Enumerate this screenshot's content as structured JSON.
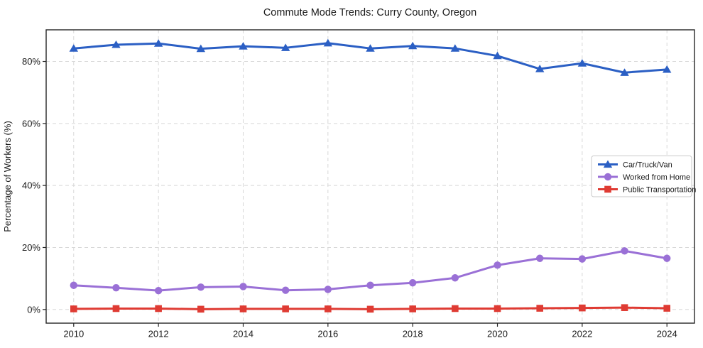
{
  "chart_data": {
    "type": "line",
    "title": "Commute Mode Trends: Curry County, Oregon",
    "xlabel": "",
    "ylabel": "Percentage of Workers (%)",
    "x": [
      2010,
      2011,
      2012,
      2013,
      2014,
      2015,
      2016,
      2017,
      2018,
      2019,
      2020,
      2021,
      2022,
      2023,
      2024
    ],
    "series": [
      {
        "name": "Car/Truck/Van",
        "marker": "triangle",
        "color": "#2b5fc4",
        "values": [
          84.2,
          85.4,
          85.8,
          84.1,
          84.9,
          84.4,
          85.9,
          84.2,
          85.0,
          84.2,
          81.8,
          77.6,
          79.4,
          76.4,
          77.4
        ]
      },
      {
        "name": "Worked from Home",
        "marker": "circle",
        "color": "#9a70d6",
        "values": [
          7.8,
          7.0,
          6.1,
          7.2,
          7.4,
          6.2,
          6.5,
          7.8,
          8.6,
          10.2,
          14.3,
          16.5,
          16.3,
          18.9,
          16.5
        ]
      },
      {
        "name": "Public Transportation",
        "marker": "square",
        "color": "#df3b33",
        "values": [
          0.2,
          0.3,
          0.3,
          0.1,
          0.2,
          0.2,
          0.2,
          0.1,
          0.2,
          0.3,
          0.3,
          0.4,
          0.5,
          0.6,
          0.4
        ]
      }
    ],
    "x_ticks": [
      2010,
      2012,
      2014,
      2016,
      2018,
      2020,
      2022,
      2024
    ],
    "y_ticks": [
      0,
      20,
      40,
      60,
      80
    ],
    "y_tick_suffix": "%",
    "xlim": [
      2009.35,
      2024.65
    ],
    "ylim": [
      -4.4,
      90.2
    ],
    "grid": true,
    "grid_style": "dashed",
    "grid_color": "#d8d8d8",
    "spine_color": "#262626",
    "legend_position": "center-right"
  }
}
